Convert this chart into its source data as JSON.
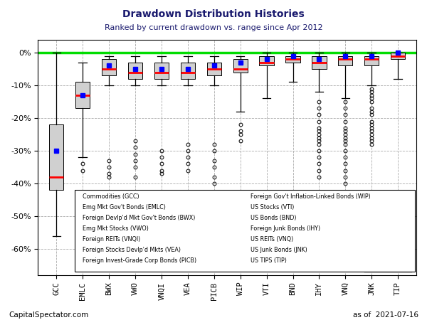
{
  "tickers": [
    "GCC",
    "EMLC",
    "BWX",
    "VWO",
    "VNQI",
    "VEA",
    "PICB",
    "WIP",
    "VTI",
    "BND",
    "IHY",
    "VNQ",
    "JNK",
    "TIP"
  ],
  "title": "Drawdown Distribution Histories",
  "subtitle": "Ranked by current drawdown vs. range since Apr 2012",
  "footer_left": "CapitalSpectator.com",
  "footer_right": "as of  2021-07-16",
  "gmlf_value": 0.0,
  "ylim": [
    -68,
    4
  ],
  "yticks": [
    0,
    -10,
    -20,
    -30,
    -40,
    -50,
    -60
  ],
  "box_color": "#d0d0d0",
  "median_color": "red",
  "current_color": "blue",
  "gmlf_color": "#00dd00",
  "boxes": [
    {
      "q1": -42,
      "median": -38,
      "q3": -22,
      "whisker_lo": -56,
      "whisker_hi": 0,
      "current": -30,
      "outliers_lo": [],
      "outliers_hi": []
    },
    {
      "q1": -17,
      "median": -13,
      "q3": -9,
      "whisker_lo": -32,
      "whisker_hi": -3,
      "current": -13,
      "outliers_lo": [
        -34,
        -36
      ],
      "outliers_hi": []
    },
    {
      "q1": -7,
      "median": -5,
      "q3": -2,
      "whisker_lo": -10,
      "whisker_hi": -1,
      "current": -4,
      "outliers_lo": [
        -33,
        -35,
        -37,
        -38
      ],
      "outliers_hi": []
    },
    {
      "q1": -8,
      "median": -6,
      "q3": -3,
      "whisker_lo": -10,
      "whisker_hi": -1,
      "current": -5,
      "outliers_lo": [
        -27,
        -29,
        -31,
        -33,
        -35,
        -38
      ],
      "outliers_hi": []
    },
    {
      "q1": -8,
      "median": -6,
      "q3": -3,
      "whisker_lo": -10,
      "whisker_hi": -1,
      "current": -5,
      "outliers_lo": [
        -30,
        -32,
        -34,
        -36,
        -37
      ],
      "outliers_hi": []
    },
    {
      "q1": -8,
      "median": -6,
      "q3": -3,
      "whisker_lo": -10,
      "whisker_hi": -1,
      "current": -5,
      "outliers_lo": [
        -28,
        -30,
        -32,
        -34,
        -36
      ],
      "outliers_hi": []
    },
    {
      "q1": -7,
      "median": -5,
      "q3": -3,
      "whisker_lo": -10,
      "whisker_hi": -1,
      "current": -4,
      "outliers_lo": [
        -28,
        -30,
        -33,
        -35,
        -38,
        -40
      ],
      "outliers_hi": []
    },
    {
      "q1": -6,
      "median": -5,
      "q3": -2,
      "whisker_lo": -18,
      "whisker_hi": -1,
      "current": -3,
      "outliers_lo": [
        -22,
        -24,
        -25,
        -27
      ],
      "outliers_hi": []
    },
    {
      "q1": -4,
      "median": -3,
      "q3": -1,
      "whisker_lo": -14,
      "whisker_hi": 0,
      "current": -2,
      "outliers_lo": [],
      "outliers_hi": []
    },
    {
      "q1": -3,
      "median": -2,
      "q3": -1,
      "whisker_lo": -9,
      "whisker_hi": 0,
      "current": -1,
      "outliers_lo": [],
      "outliers_hi": []
    },
    {
      "q1": -5,
      "median": -3,
      "q3": -1,
      "whisker_lo": -12,
      "whisker_hi": 0,
      "current": -2,
      "outliers_lo": [
        -15,
        -17,
        -19,
        -21,
        -23,
        -24,
        -25,
        -26,
        -27,
        -28,
        -30,
        -32,
        -34,
        -36,
        -38
      ],
      "outliers_hi": []
    },
    {
      "q1": -4,
      "median": -2,
      "q3": -1,
      "whisker_lo": -14,
      "whisker_hi": 0,
      "current": -1,
      "outliers_lo": [
        -15,
        -17,
        -19,
        -21,
        -23,
        -24,
        -25,
        -26,
        -27,
        -28,
        -30,
        -32,
        -34,
        -36,
        -38,
        -40
      ],
      "outliers_hi": []
    },
    {
      "q1": -4,
      "median": -2,
      "q3": -1,
      "whisker_lo": -10,
      "whisker_hi": 0,
      "current": -1,
      "outliers_lo": [
        -11,
        -12,
        -13,
        -14,
        -15,
        -17,
        -18,
        -19,
        -21,
        -22,
        -23,
        -24,
        -25,
        -26,
        -27,
        -28
      ],
      "outliers_hi": []
    },
    {
      "q1": -2,
      "median": -1,
      "q3": 0,
      "whisker_lo": -8,
      "whisker_hi": 0,
      "current": 0,
      "outliers_lo": [],
      "outliers_hi": []
    }
  ],
  "label_items_left": [
    "Commodities (GCC)",
    "Emg Mkt Gov't Bonds (EMLC)",
    "Foreign Devlp'd Mkt Gov't Bonds (BWX)",
    "Emg Mkt Stocks (VWO)",
    "Foreign REITs (VNQI)",
    "Foreign Stocks Devlp'd Mkts (VEA)",
    "Foreign Invest-Grade Corp Bonds (PICB)"
  ],
  "label_items_right": [
    "Foreign Gov't Inflation-Linked Bonds (WIP)",
    "US Stocks (VTI)",
    "US Bonds (BND)",
    "Foreign Junk Bonds (IHY)",
    "US REITs (VNQ)",
    "US Junk Bonds (JNK)",
    "US TIPS (TIP)"
  ]
}
